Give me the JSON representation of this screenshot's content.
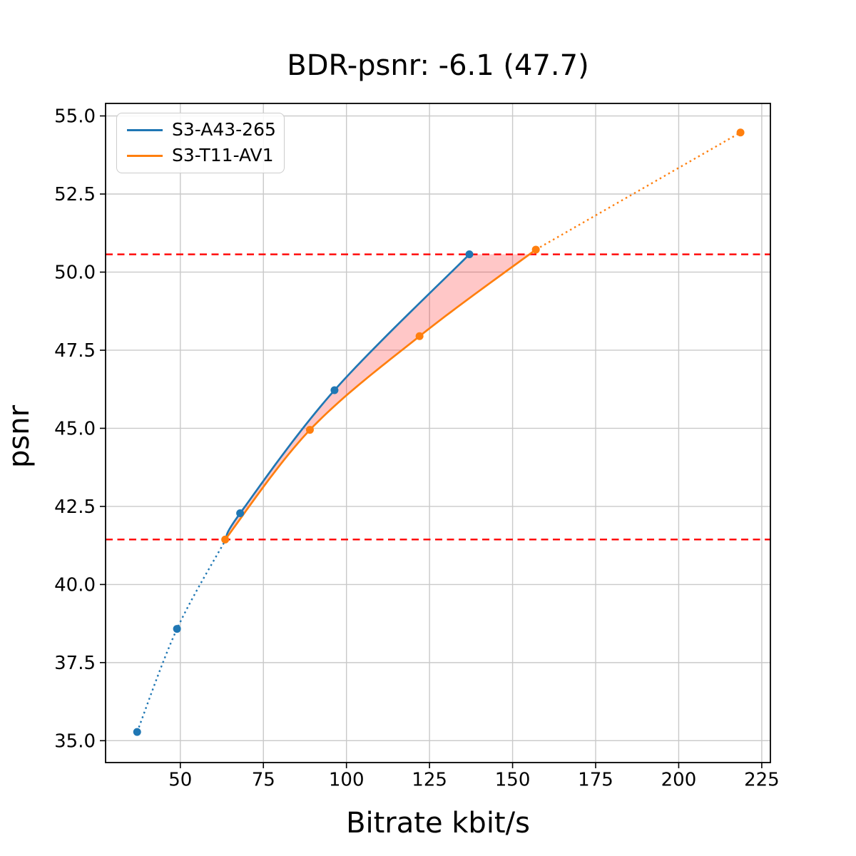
{
  "chart_data": {
    "type": "line",
    "title": "BDR-psnr: -6.1 (47.7)",
    "xlabel": "Bitrate kbit/s",
    "ylabel": "psnr",
    "xlim": [
      27.5,
      227.6
    ],
    "ylim": [
      34.3,
      55.4
    ],
    "x_ticks": [
      50,
      75,
      100,
      125,
      150,
      175,
      200,
      225
    ],
    "y_ticks": [
      35.0,
      37.5,
      40.0,
      42.5,
      45.0,
      47.5,
      50.0,
      52.5,
      55.0
    ],
    "grid": true,
    "colors": {
      "grid": "#c9c9c9",
      "spine": "#000000",
      "tick_label": "#000000",
      "reference_line": "#ff0000",
      "fill": "#ff0000",
      "background": "#ffffff"
    },
    "legend": {
      "position": "upper left"
    },
    "series": [
      {
        "name": "S3-A43-265",
        "color": "#1f77b4",
        "marker": "circle",
        "points": [
          [
            37.0,
            35.28
          ],
          [
            49.0,
            38.58
          ],
          [
            68.0,
            42.28
          ],
          [
            96.4,
            46.22
          ],
          [
            137.0,
            50.57
          ]
        ],
        "style_split": {
          "mode": "psnr",
          "value": 41.44,
          "below": "dotted",
          "above": "solid"
        }
      },
      {
        "name": "S3-T11-AV1",
        "color": "#ff7f0e",
        "marker": "circle",
        "points": [
          [
            63.5,
            41.44
          ],
          [
            89.0,
            44.95
          ],
          [
            122.0,
            47.95
          ],
          [
            157.0,
            50.72
          ],
          [
            218.6,
            54.47
          ]
        ],
        "style_split": {
          "mode": "index",
          "value": 3,
          "below": "solid",
          "above": "dotted"
        }
      }
    ],
    "reference_lines": [
      {
        "value": 41.44,
        "style": "dashed"
      },
      {
        "value": 50.57,
        "style": "dashed"
      }
    ],
    "fill_between": {
      "psnr_range": [
        41.44,
        50.57
      ],
      "opacity": 0.22
    }
  }
}
